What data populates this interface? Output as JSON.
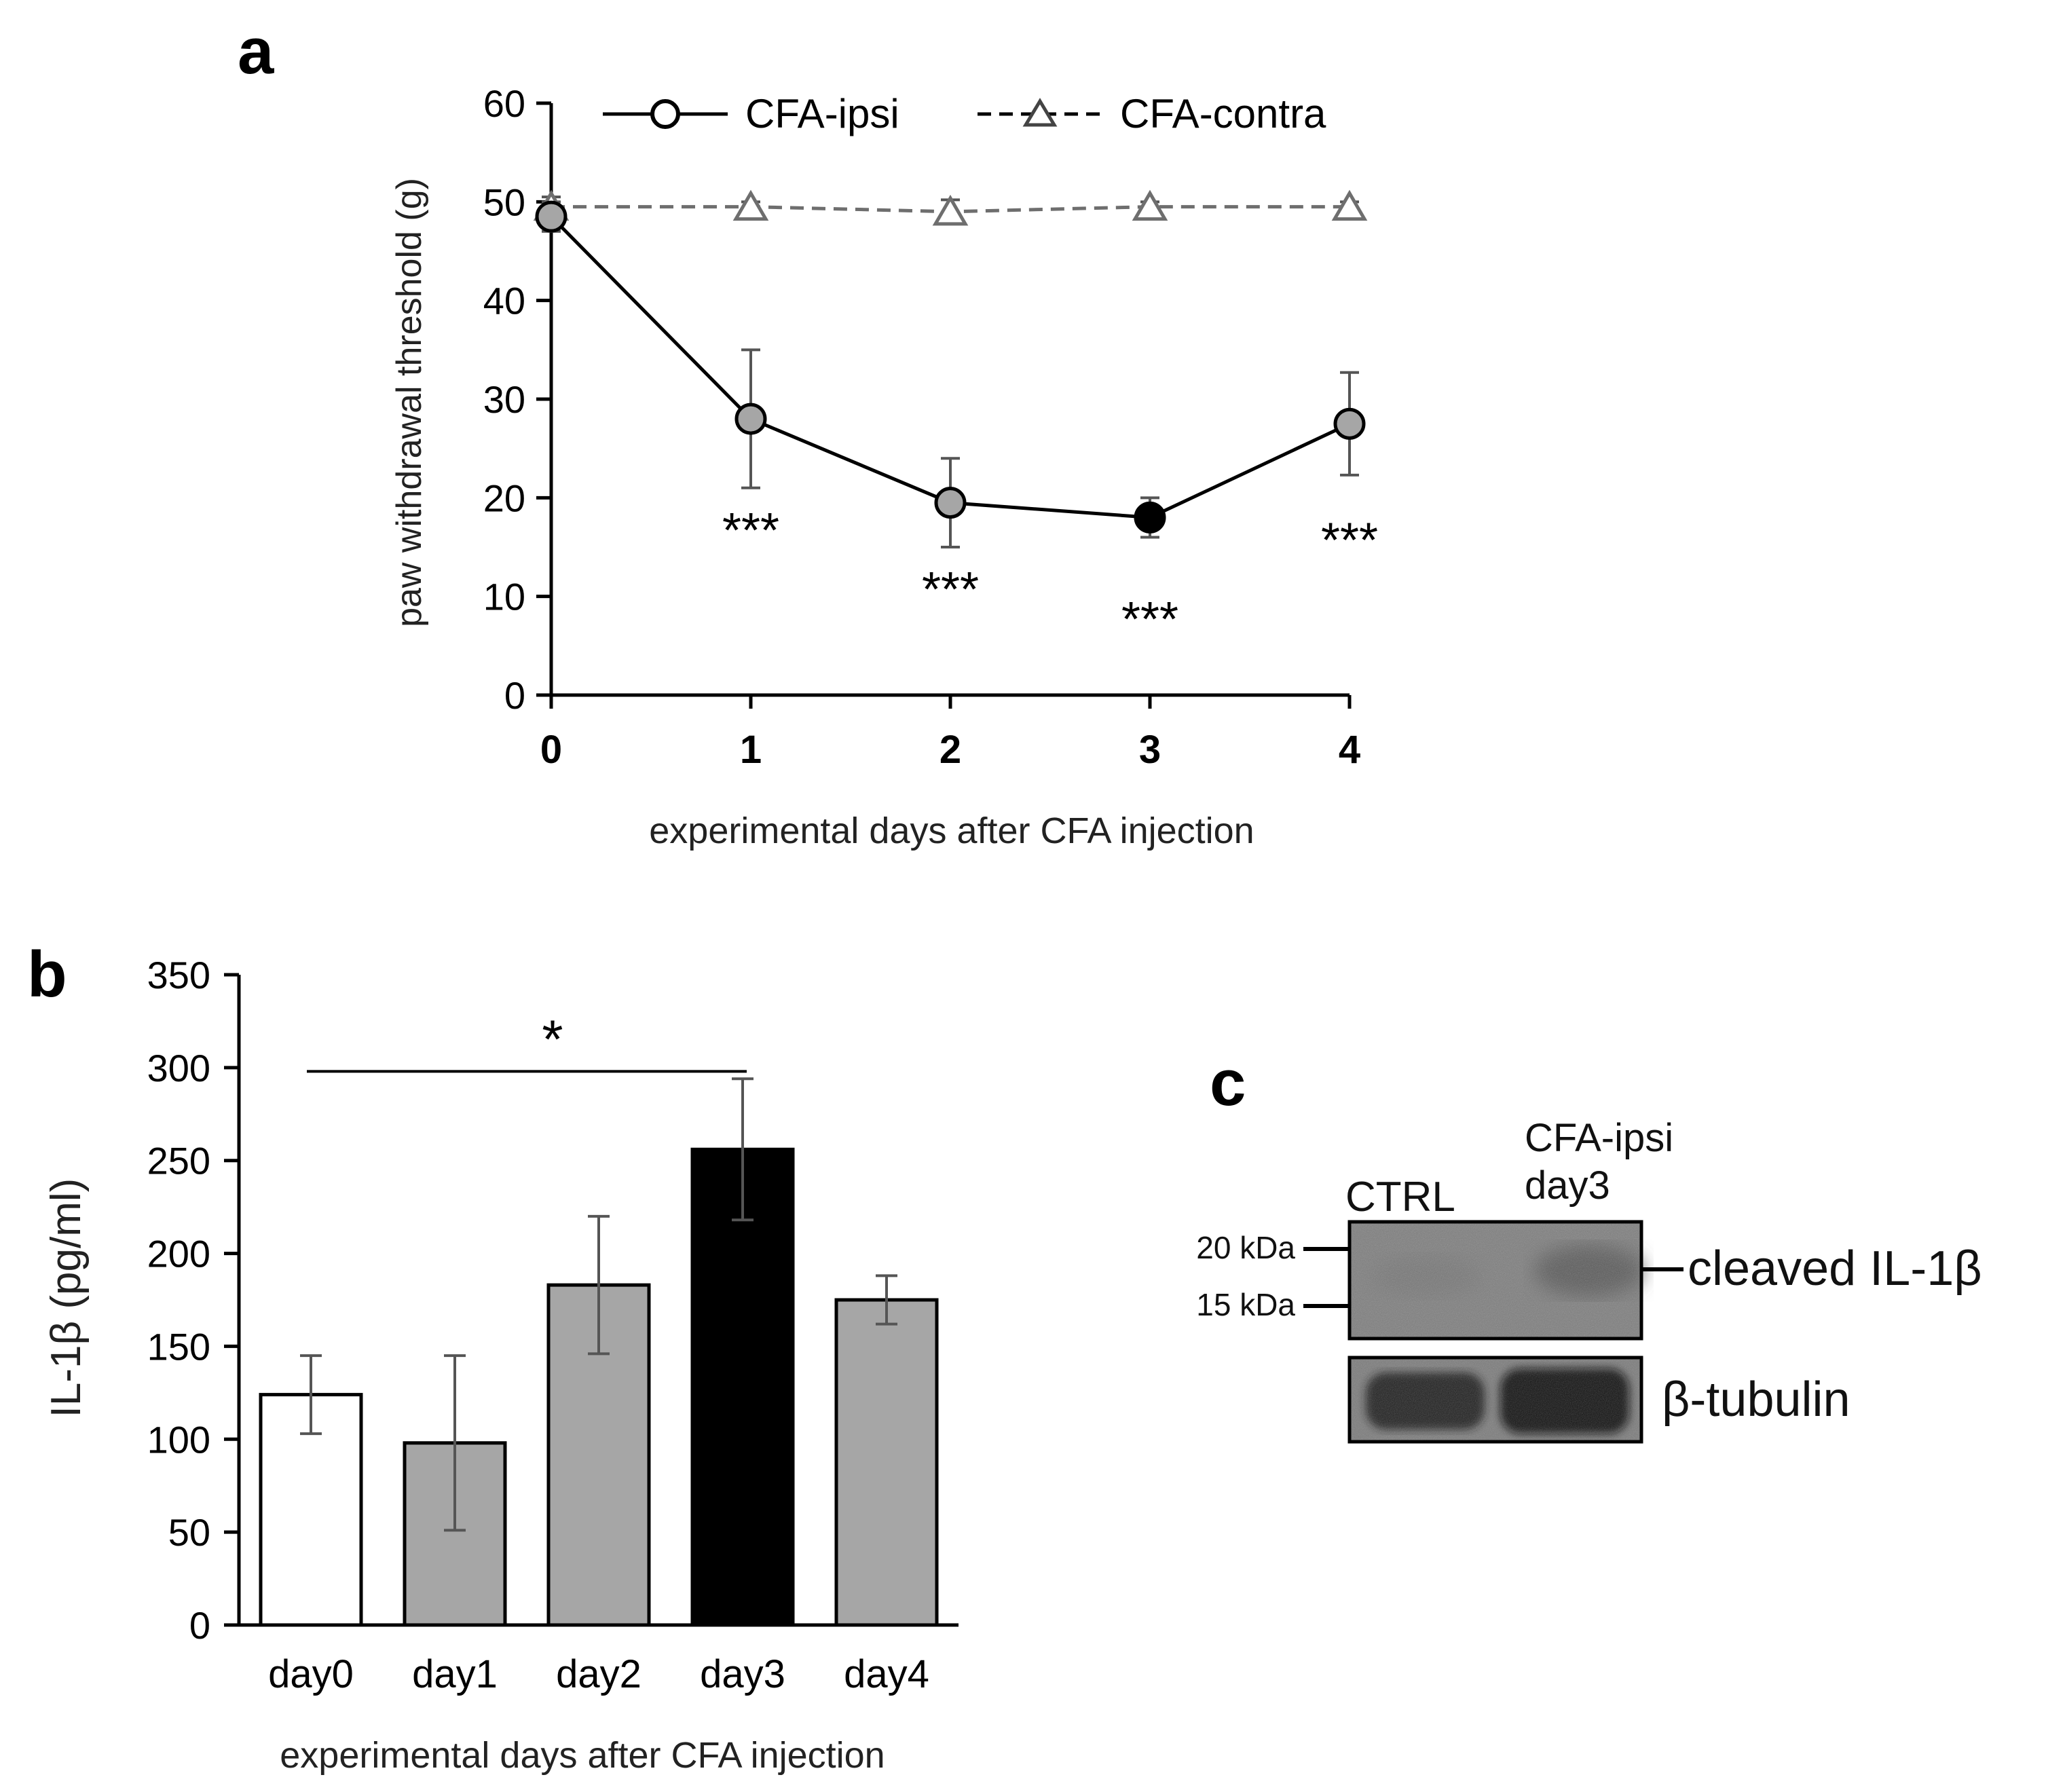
{
  "colors": {
    "axis": "#000000",
    "ipsi_line": "#000000",
    "contra_line": "#6e6e6e",
    "marker_gray": "#a6a6a6",
    "marker_black": "#000000",
    "bar_white": "#ffffff",
    "bar_gray": "#a6a6a6",
    "bar_black": "#000000",
    "error": "#555555"
  },
  "chart_data": [
    {
      "panel": "a",
      "type": "line",
      "ylabel": "paw withdrawal threshold (g)",
      "xlabel": "experimental days after CFA injection",
      "x": [
        0,
        1,
        2,
        3,
        4
      ],
      "x_ticks": [
        "0",
        "1",
        "2",
        "3",
        "4"
      ],
      "ylim": [
        0,
        60
      ],
      "y_ticks": [
        "0",
        "10",
        "20",
        "30",
        "40",
        "50",
        "60"
      ],
      "legend_placement": "top",
      "series": [
        {
          "name": "CFA-ipsi",
          "marker": "circle",
          "line_style": "solid",
          "values": [
            48.5,
            28,
            19.5,
            18,
            27.5
          ],
          "errors": [
            1.5,
            7,
            4.5,
            2,
            5.2
          ],
          "marker_colors": [
            "gray",
            "gray",
            "gray",
            "black",
            "gray"
          ]
        },
        {
          "name": "CFA-contra",
          "marker": "triangle",
          "line_style": "dashed",
          "values": [
            49.5,
            49.5,
            49,
            49.5,
            49.5
          ],
          "errors": [
            1,
            0.5,
            1.2,
            0.5,
            0.5
          ]
        }
      ],
      "annotations": [
        {
          "x": 1,
          "y": 15,
          "text": "***"
        },
        {
          "x": 2,
          "y": 9,
          "text": "***"
        },
        {
          "x": 3,
          "y": 6,
          "text": "***"
        },
        {
          "x": 4,
          "y": 14,
          "text": "***"
        }
      ]
    },
    {
      "panel": "b",
      "type": "bar",
      "ylabel": "IL-1β (pg/ml)",
      "xlabel": "experimental days after CFA injection",
      "categories": [
        "day0",
        "day1",
        "day2",
        "day3",
        "day4"
      ],
      "values": [
        124,
        98,
        183,
        256,
        175
      ],
      "errors": [
        21,
        47,
        37,
        38,
        13
      ],
      "bar_colors": [
        "white",
        "gray",
        "gray",
        "black",
        "gray"
      ],
      "ylim": [
        0,
        350
      ],
      "y_ticks": [
        "0",
        "50",
        "100",
        "150",
        "200",
        "250",
        "300",
        "350"
      ],
      "significance": {
        "from": "day0",
        "to": "day3",
        "y": 298,
        "text": "*"
      }
    }
  ],
  "panel_labels": {
    "a": "a",
    "b": "b",
    "c": "c"
  },
  "blot": {
    "lane1": "CTRL",
    "lane2_line1": "CFA-ipsi",
    "lane2_line2": "day3",
    "marker_20": "20 kDa",
    "marker_15": "15 kDa",
    "target_label": "cleaved IL-1β",
    "loading_label": "β-tubulin"
  }
}
